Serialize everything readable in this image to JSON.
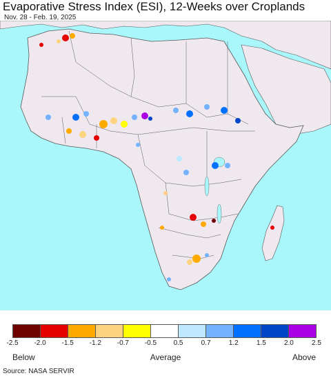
{
  "title": "Evaporative Stress Index (ESI), 12-Weeks over Croplands",
  "subtitle": "Nov. 28 - Feb. 19, 2025",
  "map": {
    "region": "Africa",
    "ocean_color": "#aaf7fb",
    "land_color": "#efe9ef",
    "border_color": "#555555"
  },
  "legend": {
    "colors": [
      "#6e0000",
      "#e60000",
      "#ffaa00",
      "#fed37f",
      "#ffff00",
      "#ffffff",
      "#bee8ff",
      "#73b2ff",
      "#0070ff",
      "#0046c8",
      "#aa00e6"
    ],
    "ticks": [
      "-2.5",
      "-2.0",
      "-1.5",
      "-1.2",
      "-0.7",
      "-0.5",
      "0.5",
      "0.7",
      "1.2",
      "1.5",
      "2.0",
      "2.5"
    ],
    "below_label": "Below",
    "average_label": "Average",
    "above_label": "Above"
  },
  "source": "Source: NASA SERVIR"
}
